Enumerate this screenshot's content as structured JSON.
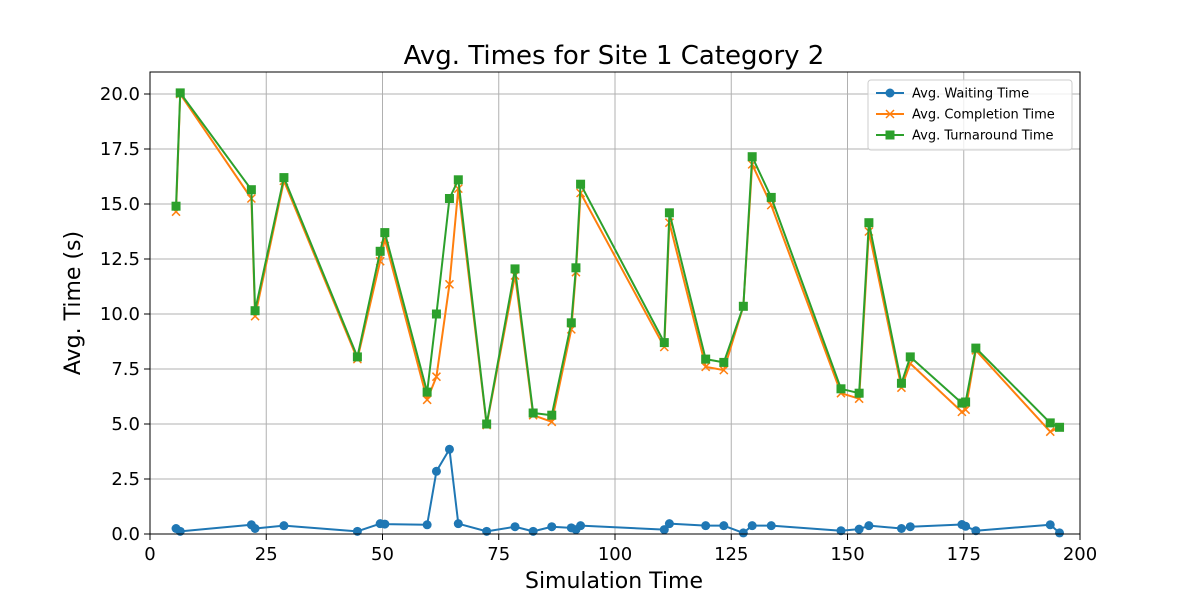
{
  "chart_data": {
    "type": "line",
    "title": "Avg. Times for Site 1 Category 2",
    "xlabel": "Simulation Time",
    "ylabel": "Avg. Time (s)",
    "xlim": [
      0,
      200
    ],
    "ylim": [
      0,
      21
    ],
    "xticks": [
      0,
      25,
      50,
      75,
      100,
      125,
      150,
      175,
      200
    ],
    "xtick_labels": [
      "0",
      "25",
      "50",
      "75",
      "100",
      "125",
      "150",
      "175",
      "200"
    ],
    "yticks": [
      0,
      2.5,
      5,
      7.5,
      10,
      12.5,
      15,
      17.5,
      20
    ],
    "ytick_labels": [
      "0.0",
      "2.5",
      "5.0",
      "7.5",
      "10.0",
      "12.5",
      "15.0",
      "17.5",
      "20.0"
    ],
    "grid": true,
    "legend_position": "top-right",
    "x": [
      5.6,
      6.5,
      21.8,
      22.6,
      28.8,
      44.6,
      49.5,
      50.5,
      59.6,
      61.6,
      64.4,
      66.3,
      72.4,
      78.5,
      82.4,
      86.4,
      90.6,
      91.6,
      92.6,
      110.6,
      111.7,
      119.5,
      123.4,
      127.6,
      129.5,
      133.6,
      148.6,
      152.5,
      154.6,
      161.6,
      163.5,
      174.6,
      175.4,
      177.6,
      193.6,
      195.6
    ],
    "series": [
      {
        "name": "Avg. Waiting Time",
        "color": "#1f77b4",
        "marker": "circle",
        "values": [
          0.25,
          0.12,
          0.42,
          0.25,
          0.38,
          0.12,
          0.47,
          0.45,
          0.42,
          2.85,
          3.85,
          0.47,
          0.12,
          0.33,
          0.12,
          0.33,
          0.28,
          0.2,
          0.38,
          0.2,
          0.47,
          0.38,
          0.38,
          0.05,
          0.38,
          0.38,
          0.15,
          0.22,
          0.38,
          0.25,
          0.33,
          0.43,
          0.35,
          0.15,
          0.42,
          0.05
        ]
      },
      {
        "name": "Avg. Completion Time",
        "color": "#ff7f0e",
        "marker": "x",
        "values": [
          14.65,
          20.0,
          15.25,
          9.9,
          16.05,
          7.95,
          12.4,
          13.4,
          6.1,
          7.15,
          11.35,
          15.7,
          4.95,
          11.75,
          5.4,
          5.1,
          9.3,
          11.9,
          15.5,
          8.5,
          14.15,
          7.6,
          7.45,
          10.35,
          16.8,
          14.95,
          6.4,
          6.15,
          13.75,
          6.65,
          7.75,
          5.55,
          5.65,
          8.35,
          4.65,
          4.85
        ]
      },
      {
        "name": "Avg. Turnaround Time",
        "color": "#2ca02c",
        "marker": "square",
        "values": [
          14.9,
          20.05,
          15.65,
          10.15,
          16.2,
          8.05,
          12.85,
          13.7,
          6.45,
          10.0,
          15.25,
          16.1,
          5.0,
          12.05,
          5.5,
          5.4,
          9.6,
          12.1,
          15.9,
          8.7,
          14.6,
          7.95,
          7.8,
          10.35,
          17.15,
          15.3,
          6.6,
          6.4,
          14.15,
          6.85,
          8.05,
          5.95,
          6.0,
          8.45,
          5.05,
          4.85
        ]
      }
    ]
  }
}
